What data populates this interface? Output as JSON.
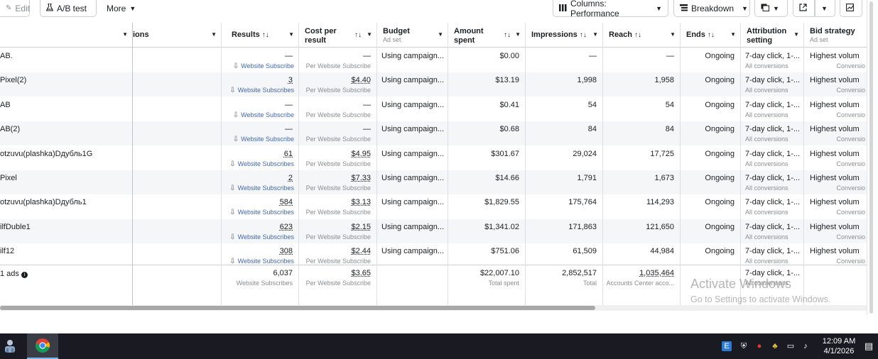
{
  "toolbar": {
    "edit_label": "Edit",
    "ab_test_label": "A/B test",
    "more_label": "More",
    "columns_label": "Columns: Performance",
    "breakdown_label": "Breakdown"
  },
  "columns": {
    "conversions_partial": "ions",
    "results": "Results",
    "cost_per_result_1": "Cost per",
    "cost_per_result_2": "result",
    "budget": "Budget",
    "budget_sub": "Ad set",
    "amount_spent_1": "Amount",
    "amount_spent_2": "spent",
    "impressions": "Impressions",
    "reach": "Reach",
    "ends": "Ends",
    "attribution_1": "Attribution",
    "attribution_2": "setting",
    "bid_strategy": "Bid strategy",
    "bid_strategy_sub": "Ad set",
    "sort_glyph": "↑↓"
  },
  "rows": [
    {
      "name": "AB.",
      "results": "—",
      "results_sub": "Website Subscribe",
      "cpr": "—",
      "cpr_sub": "Per Website Subscribe",
      "budget": "Using campaign...",
      "spent": "$0.00",
      "impressions": "—",
      "reach": "—",
      "ends": "Ongoing",
      "attribution": "7-day click, 1-...",
      "attribution_sub": "All conversions",
      "bid": "Highest volum",
      "bid_sub": "Conversio"
    },
    {
      "name": "Pixel(2)",
      "results": "3",
      "results_sub": "Website Subscribes",
      "cpr": "$4.40",
      "cpr_sub": "Per Website Subscribe",
      "budget": "Using campaign...",
      "spent": "$13.19",
      "impressions": "1,998",
      "reach": "1,958",
      "ends": "Ongoing",
      "attribution": "7-day click, 1-...",
      "attribution_sub": "All conversions",
      "bid": "Highest volum",
      "bid_sub": "Conversio"
    },
    {
      "name": "AB",
      "results": "—",
      "results_sub": "Website Subscribe",
      "cpr": "—",
      "cpr_sub": "Per Website Subscribe",
      "budget": "Using campaign...",
      "spent": "$0.41",
      "impressions": "54",
      "reach": "54",
      "ends": "Ongoing",
      "attribution": "7-day click, 1-...",
      "attribution_sub": "All conversions",
      "bid": "Highest volum",
      "bid_sub": "Conversio"
    },
    {
      "name": "AB(2)",
      "results": "—",
      "results_sub": "Website Subscribe",
      "cpr": "—",
      "cpr_sub": "Per Website Subscribe",
      "budget": "Using campaign...",
      "spent": "$0.68",
      "impressions": "84",
      "reach": "84",
      "ends": "Ongoing",
      "attribution": "7-day click, 1-...",
      "attribution_sub": "All conversions",
      "bid": "Highest volum",
      "bid_sub": "Conversio"
    },
    {
      "name": "otzuvu(plashka)Dдубль1G",
      "results": "61",
      "results_sub": "Website Subscribes",
      "cpr": "$4.95",
      "cpr_sub": "Per Website Subscribe",
      "budget": "Using campaign...",
      "spent": "$301.67",
      "impressions": "29,024",
      "reach": "17,725",
      "ends": "Ongoing",
      "attribution": "7-day click, 1-...",
      "attribution_sub": "All conversions",
      "bid": "Highest volum",
      "bid_sub": "Conversio"
    },
    {
      "name": "Pixel",
      "results": "2",
      "results_sub": "Website Subscribes",
      "cpr": "$7.33",
      "cpr_sub": "Per Website Subscribe",
      "budget": "Using campaign...",
      "spent": "$14.66",
      "impressions": "1,791",
      "reach": "1,673",
      "ends": "Ongoing",
      "attribution": "7-day click, 1-...",
      "attribution_sub": "All conversions",
      "bid": "Highest volum",
      "bid_sub": "Conversio"
    },
    {
      "name": "otzuvu(plashka)Dдубль1",
      "results": "584",
      "results_sub": "Website Subscribes",
      "cpr": "$3.13",
      "cpr_sub": "Per Website Subscribe",
      "budget": "Using campaign...",
      "spent": "$1,829.55",
      "impressions": "175,764",
      "reach": "114,293",
      "ends": "Ongoing",
      "attribution": "7-day click, 1-...",
      "attribution_sub": "All conversions",
      "bid": "Highest volum",
      "bid_sub": "Conversio"
    },
    {
      "name": "ilfDuble1",
      "results": "623",
      "results_sub": "Website Subscribes",
      "cpr": "$2.15",
      "cpr_sub": "Per Website Subscribe",
      "budget": "Using campaign...",
      "spent": "$1,341.02",
      "impressions": "171,863",
      "reach": "121,650",
      "ends": "Ongoing",
      "attribution": "7-day click, 1-...",
      "attribution_sub": "All conversions",
      "bid": "Highest volum",
      "bid_sub": "Conversio"
    },
    {
      "name": "ilf12",
      "results": "308",
      "results_sub": "Website Subscribes",
      "cpr": "$2.44",
      "cpr_sub": "Per Website Subscribe",
      "budget": "Using campaign...",
      "spent": "$751.06",
      "impressions": "61,509",
      "reach": "44,984",
      "ends": "Ongoing",
      "attribution": "7-day click, 1-...",
      "attribution_sub": "All conversions",
      "bid": "Highest volum",
      "bid_sub": "Conversio"
    }
  ],
  "summary": {
    "label": "1 ads",
    "results": "6,037",
    "results_sub": "Website Subscribes",
    "cpr": "$3.65",
    "cpr_sub": "Per Website Subscribe",
    "spent": "$22,007.10",
    "spent_sub": "Total spent",
    "impressions": "2,852,517",
    "impressions_sub": "Total",
    "reach": "1,035,464",
    "reach_sub": "Accounts Center acco...",
    "attribution": "7-day click, 1-...",
    "attribution_sub": "All conversions"
  },
  "watermark": {
    "line1": "Activate Windows",
    "line2": "Go to Settings to activate Windows."
  },
  "taskbar": {
    "time": "12:09 AM",
    "date": "4/1/2026"
  },
  "icons": [
    "pencil-icon",
    "flask-icon",
    "columns-icon",
    "breakdown-icon",
    "report-icon",
    "export-icon",
    "chart-icon",
    "sort-icon",
    "dropdown-icon",
    "download-icon",
    "info-icon",
    "user-icon",
    "chrome-icon",
    "notification-icon"
  ],
  "colors": {
    "link": "#4267b2",
    "muted": "#8a8d91",
    "border": "#ccd0d5",
    "row_alt": "#f5f6f7",
    "taskbar": "#1a1b22"
  }
}
